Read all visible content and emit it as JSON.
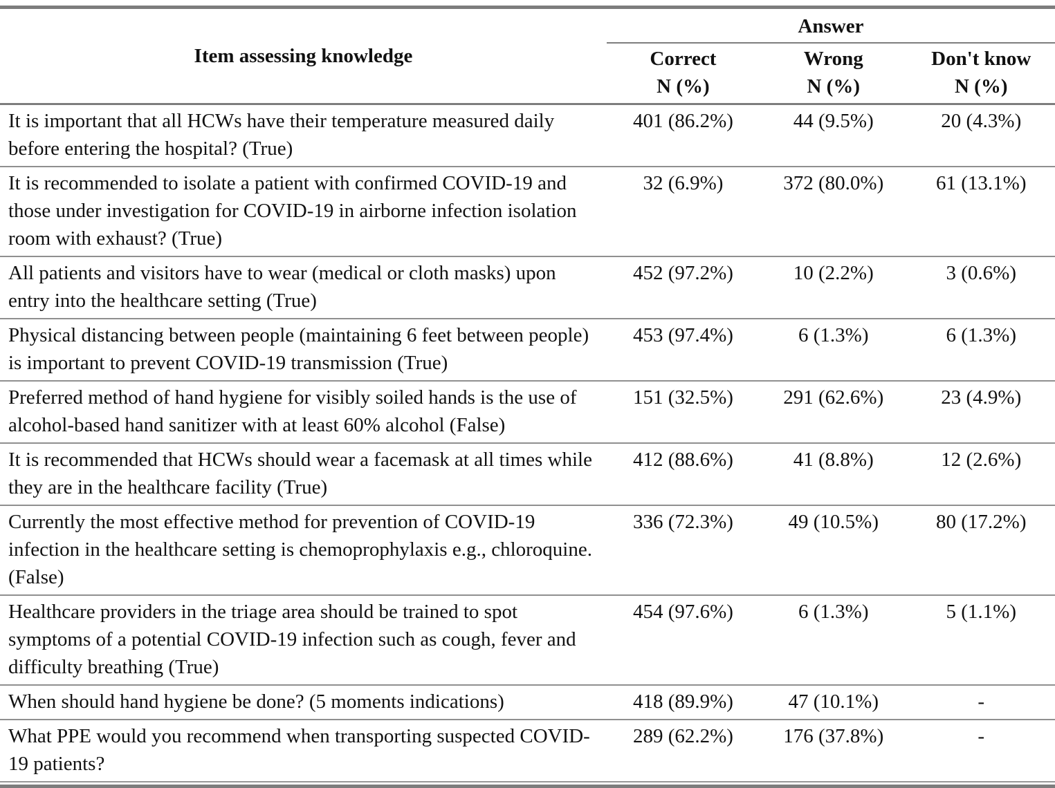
{
  "table": {
    "item_header": "Item assessing knowledge",
    "answer_header": "Answer",
    "columns": [
      {
        "label": "Correct",
        "unit": "N (%)"
      },
      {
        "label": "Wrong",
        "unit": "N (%)"
      },
      {
        "label": "Don't know",
        "unit": "N (%)"
      }
    ],
    "rows": [
      {
        "item": "It is important that all HCWs have their temperature measured daily before entering the hospital? (True)",
        "correct": "401 (86.2%)",
        "wrong": "44 (9.5%)",
        "dont_know": "20 (4.3%)"
      },
      {
        "item": "It is recommended to isolate a patient with confirmed COVID-19 and those under investigation for COVID-19 in airborne infection isolation room with exhaust? (True)",
        "correct": "32 (6.9%)",
        "wrong": "372 (80.0%)",
        "dont_know": "61 (13.1%)"
      },
      {
        "item": "All patients and visitors have to wear (medical or cloth masks) upon entry into the healthcare setting (True)",
        "correct": "452 (97.2%)",
        "wrong": "10 (2.2%)",
        "dont_know": "3 (0.6%)"
      },
      {
        "item": "Physical distancing between people (maintaining 6 feet between people) is important to prevent COVID-19 transmission (True)",
        "correct": "453 (97.4%)",
        "wrong": "6 (1.3%)",
        "dont_know": "6 (1.3%)"
      },
      {
        "item": "Preferred method of hand hygiene for visibly soiled hands is the use of alcohol-based hand sanitizer with at least 60% alcohol (False)",
        "correct": "151 (32.5%)",
        "wrong": "291 (62.6%)",
        "dont_know": "23 (4.9%)"
      },
      {
        "item": "It is recommended that HCWs should wear a facemask at all times while they are in the healthcare facility (True)",
        "correct": "412 (88.6%)",
        "wrong": "41 (8.8%)",
        "dont_know": "12 (2.6%)"
      },
      {
        "item": "Currently the most effective method for prevention of COVID-19 infection in the healthcare setting is chemoprophylaxis e.g., chloroquine. (False)",
        "correct": "336 (72.3%)",
        "wrong": "49 (10.5%)",
        "dont_know": "80 (17.2%)"
      },
      {
        "item": "Healthcare providers in the triage area should be trained to spot symptoms of a potential COVID-19 infection such as cough, fever and difficulty breathing (True)",
        "correct": "454 (97.6%)",
        "wrong": "6 (1.3%)",
        "dont_know": "5 (1.1%)"
      },
      {
        "item": "When should hand hygiene be done? (5 moments indications)",
        "correct": "418 (89.9%)",
        "wrong": "47 (10.1%)",
        "dont_know": "-"
      },
      {
        "item": "What PPE would you recommend when transporting suspected COVID-19 patients?",
        "correct": "289 (62.2%)",
        "wrong": "176 (37.8%)",
        "dont_know": "-"
      }
    ]
  },
  "colors": {
    "rule_gray": "#7d7d7d",
    "separator_gray": "#8f8f8f",
    "text": "#111111"
  }
}
